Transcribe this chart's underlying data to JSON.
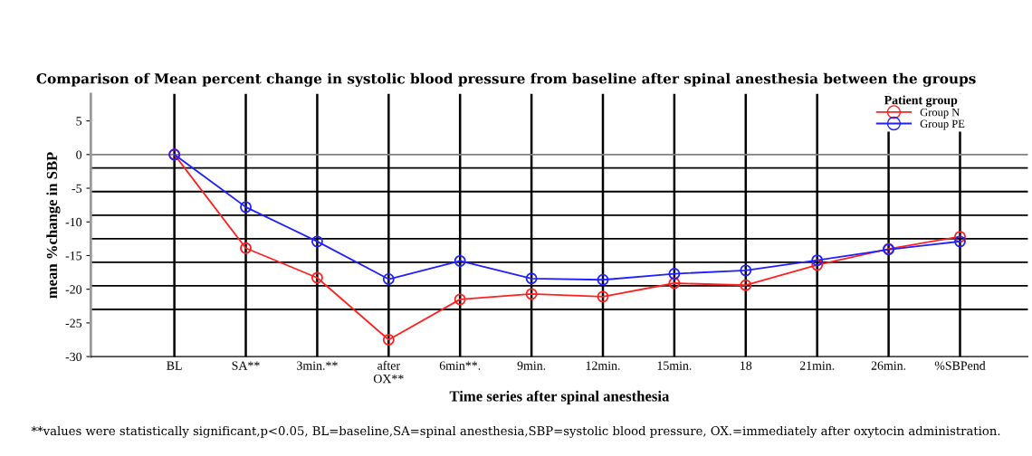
{
  "chart_data": {
    "type": "line",
    "title": "Comparison of Mean percent change in systolic blood pressure from baseline after spinal anesthesia between the groups",
    "xlabel": "Time series after spinal anesthesia",
    "ylabel": "mean %change in SBP",
    "legend_title": "Patient group",
    "categories": [
      "BL",
      "SA**",
      "3min.**",
      "after\nOX**",
      "6min**.",
      "9min.",
      "12min.",
      "15min.",
      "18",
      "21min.",
      "26min.",
      "%SBPend"
    ],
    "series": [
      {
        "name": "Group N",
        "color": "#ff2020",
        "values": [
          0,
          -13.9,
          -18.3,
          -27.5,
          -21.5,
          -20.7,
          -21.1,
          -19.1,
          -19.4,
          -16.4,
          -14.0,
          -12.2
        ]
      },
      {
        "name": "Group PE",
        "color": "#2020ff",
        "values": [
          0,
          -7.8,
          -12.9,
          -18.5,
          -15.8,
          -18.4,
          -18.6,
          -17.7,
          -17.2,
          -15.7,
          -14.1,
          -12.9
        ]
      }
    ],
    "ylim": [
      -30,
      9
    ],
    "yticks": [
      {
        "value": -30,
        "label": "-30"
      },
      {
        "value": -25,
        "label": "-25"
      },
      {
        "value": -20,
        "label": "-20"
      },
      {
        "value": -15,
        "label": "-15"
      },
      {
        "value": -10,
        "label": "-10"
      },
      {
        "value": -5,
        "label": "-5"
      },
      0,
      5
    ],
    "ref_lines": [
      {
        "axis": "y",
        "value": 0,
        "color": "#808080"
      },
      {
        "axis": "y",
        "value": -2,
        "color": "#000000"
      },
      {
        "axis": "y",
        "value": -5.5,
        "color": "#000000"
      },
      {
        "axis": "y",
        "value": -9,
        "color": "#000000"
      },
      {
        "axis": "y",
        "value": -12.5,
        "color": "#000000"
      },
      {
        "axis": "y",
        "value": -16,
        "color": "#000000"
      },
      {
        "axis": "y",
        "value": -19.5,
        "color": "#000000"
      },
      {
        "axis": "y",
        "value": -23,
        "color": "#000000"
      }
    ],
    "grid": "x",
    "legend": "top right",
    "marker": "circle",
    "line_style": "solid",
    "annotations": [
      "**values were statistically significant,p<0.05, BL=baseline,SA=spinal anesthesia,SBP=systolic blood pressure, OX.=immediately after oxytocin administration."
    ]
  }
}
